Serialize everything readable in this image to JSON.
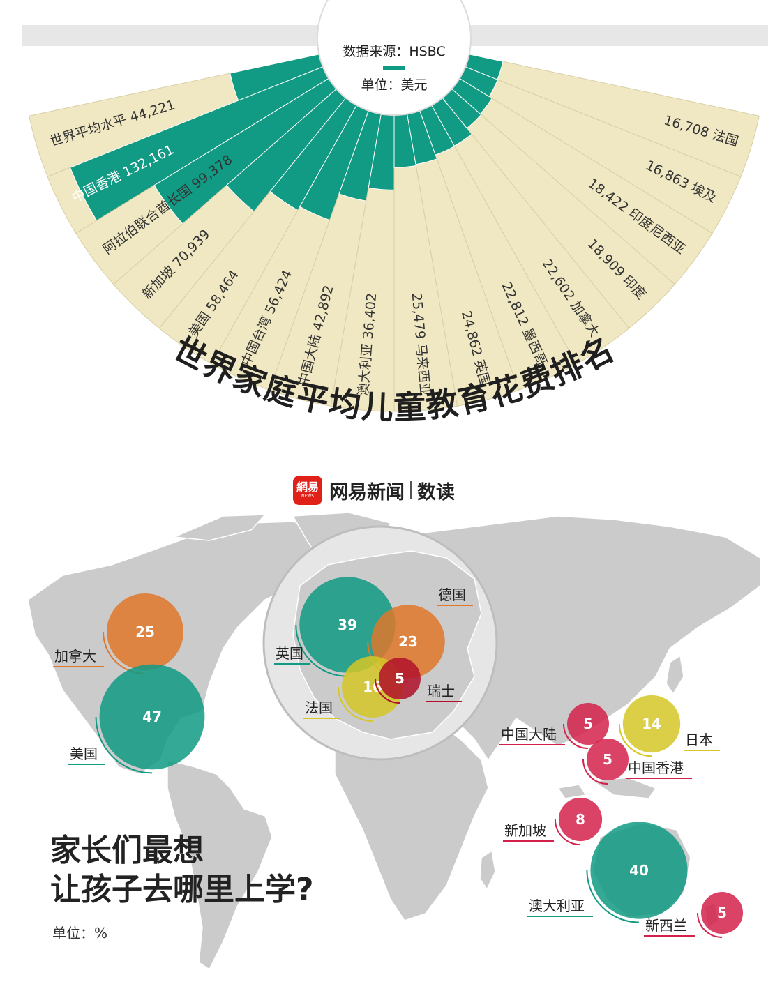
{
  "source": "数据来源：HSBC",
  "unit_top": "单位：美元",
  "title_top": "世界家庭平均儿童教育花费排名",
  "brand": {
    "logo": "網易",
    "logo_small": "NEWS",
    "name": "网易新闻",
    "sub": "数读"
  },
  "question": {
    "line1": "家长们最想",
    "line2": "让孩子去哪里上学?",
    "unit": "单位：%"
  },
  "colors": {
    "teal": "#119a84",
    "cream": "#f0e8c2",
    "orange": "#e0782c",
    "teal_bubble": "#3bb3a0",
    "yellow": "#d4c726",
    "crimson": "#d3214b",
    "darkred": "#b2102a",
    "land": "#cbcbcb"
  },
  "chart_data": [
    {
      "type": "bar",
      "layout": "radial-fan",
      "title": "世界家庭平均儿童教育花费排名",
      "unit": "美元",
      "categories": [
        "世界平均水平",
        "中国香港",
        "阿拉伯联合酋长国",
        "新加坡",
        "美国",
        "中国台湾",
        "中国大陆",
        "澳大利亚",
        "马来西亚",
        "英国",
        "墨西哥",
        "加拿大",
        "印度",
        "印度尼西亚",
        "埃及",
        "法国"
      ],
      "values": [
        44221,
        132161,
        99378,
        70939,
        58464,
        56424,
        42892,
        36402,
        25479,
        24862,
        22812,
        22602,
        18909,
        18422,
        16863,
        16708
      ],
      "labels": [
        "世界平均水平 44,221",
        "中国香港 132,161",
        "阿拉伯联合酋长国 99,378",
        "新加坡 70,939",
        "美国 58,464",
        "中国台湾 56,424",
        "中国大陆 42,892",
        "澳大利亚 36,402",
        "25,479 马来西亚",
        "24,862 英国",
        "22,812 墨西哥",
        "22,602 加拿大",
        "18,909 印度",
        "18,422 印度尼西亚",
        "16,863 埃及",
        "16,708 法国"
      ]
    },
    {
      "type": "bubble-map",
      "title": "家长们最想让孩子去哪里上学?",
      "unit": "%",
      "points": [
        {
          "name": "加拿大",
          "value": 25,
          "color": "orange"
        },
        {
          "name": "美国",
          "value": 47,
          "color": "teal"
        },
        {
          "name": "英国",
          "value": 39,
          "color": "teal"
        },
        {
          "name": "德国",
          "value": 23,
          "color": "orange"
        },
        {
          "name": "法国",
          "value": 16,
          "color": "yellow"
        },
        {
          "name": "瑞士",
          "value": 5,
          "color": "darkred"
        },
        {
          "name": "中国大陆",
          "value": 5,
          "color": "crimson"
        },
        {
          "name": "日本",
          "value": 14,
          "color": "yellow"
        },
        {
          "name": "中国香港",
          "value": 5,
          "color": "crimson"
        },
        {
          "name": "新加坡",
          "value": 8,
          "color": "crimson"
        },
        {
          "name": "澳大利亚",
          "value": 40,
          "color": "teal"
        },
        {
          "name": "新西兰",
          "value": 5,
          "color": "crimson"
        }
      ]
    }
  ]
}
